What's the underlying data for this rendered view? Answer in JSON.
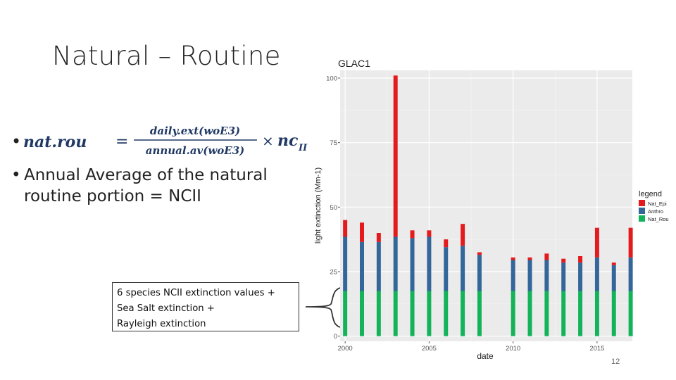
{
  "slide": {
    "title": "Natural – Routine",
    "bullet_char": "•",
    "formula": {
      "lhs": "nat.rou",
      "equals": "=",
      "numerator": "daily.ext(woE3)",
      "denominator": "annual.av(woE3)",
      "times": "×",
      "factor": "nc",
      "factor_sub": "II"
    },
    "bullet2": "Annual Average of the natural routine portion = NCII",
    "callout_lines": [
      "6 species NCII extinction values +",
      "Sea Salt extinction +",
      "Rayleigh extinction"
    ],
    "page_number": "12"
  },
  "chart_data": {
    "type": "bar",
    "stacked": true,
    "title": "GLAC1",
    "xlabel": "date",
    "ylabel": "light extinction (Mm-1)",
    "xlim": [
      1999.7,
      2017.1
    ],
    "ylim": [
      -2,
      103
    ],
    "xticks": [
      2000,
      2005,
      2010,
      2015
    ],
    "yticks": [
      0,
      25,
      50,
      75,
      100
    ],
    "grid": true,
    "legend_position": "right",
    "legend_title": "legend",
    "x": [
      2000,
      2001,
      2002,
      2003,
      2004,
      2005,
      2006,
      2007,
      2008,
      2010,
      2011,
      2012,
      2013,
      2014,
      2015,
      2016,
      2017
    ],
    "series": [
      {
        "name": "Nat_Rou",
        "color": "#13b35a",
        "values": [
          17.5,
          17.5,
          17.5,
          17.5,
          17.5,
          17.5,
          17.5,
          17.5,
          17.5,
          17.5,
          17.5,
          17.5,
          17.5,
          17.5,
          17.5,
          17.5,
          17.5
        ]
      },
      {
        "name": "Anthro",
        "color": "#336699",
        "values": [
          21,
          19,
          19,
          21,
          20.5,
          21,
          17,
          17.5,
          14,
          12,
          12,
          12,
          11,
          11,
          13,
          10,
          13
        ]
      },
      {
        "name": "Nat_Epi",
        "color": "#e41a1c",
        "values": [
          6.5,
          7.5,
          3.5,
          62.5,
          3,
          2.5,
          3,
          8.5,
          1,
          1,
          1,
          2.5,
          1.5,
          2.5,
          11.5,
          1,
          11.5
        ]
      }
    ],
    "legend_labels": [
      "Nat_Epi",
      "Anthro",
      "Nat_Rou"
    ]
  }
}
